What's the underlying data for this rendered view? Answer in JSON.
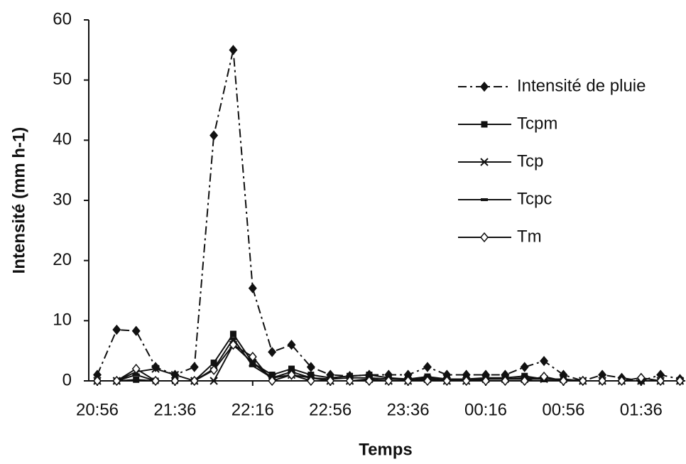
{
  "chart_data": {
    "type": "line",
    "x_label": "Temps",
    "y_label": "Intensité (mm h-1)",
    "categories": [
      "20:56",
      null,
      null,
      null,
      "21:36",
      null,
      null,
      null,
      "22:16",
      null,
      null,
      null,
      "22:56",
      null,
      null,
      null,
      "23:36",
      null,
      null,
      null,
      "00:16",
      null,
      null,
      null,
      "00:56",
      null,
      null,
      null,
      "01:36",
      null,
      null
    ],
    "ylim": [
      0,
      60
    ],
    "yticks": [
      0,
      10,
      20,
      30,
      40,
      50,
      60
    ],
    "series": [
      {
        "name": "Intensité de pluie",
        "color": "#111111",
        "dash": "12,5,3,5",
        "marker": "filled-diamond",
        "values": [
          1,
          8.5,
          8.3,
          2.3,
          1,
          2.3,
          40.8,
          55,
          15.4,
          4.8,
          6,
          2.3,
          1,
          0.8,
          1,
          1,
          1,
          2.3,
          1,
          1,
          1,
          1,
          2.3,
          3.3,
          1,
          0,
          1,
          0.5,
          0,
          1,
          0.3
        ]
      },
      {
        "name": "Tcpm",
        "color": "#111111",
        "dash": "none",
        "marker": "filled-square",
        "values": [
          0,
          0,
          0.2,
          0,
          0,
          0,
          3,
          7.8,
          3,
          1,
          2,
          1,
          0.5,
          0.8,
          1,
          0.5,
          0.3,
          0.7,
          0.3,
          0.3,
          0.5,
          0.5,
          0.8,
          0.3,
          0.2,
          0,
          0,
          0,
          0,
          0,
          0
        ]
      },
      {
        "name": "Tcp",
        "color": "#111111",
        "dash": "none",
        "marker": "cross",
        "values": [
          0,
          0,
          1.5,
          2,
          1,
          0,
          0,
          6,
          3,
          0.5,
          1,
          0.5,
          0,
          0,
          0.3,
          0,
          0,
          0.3,
          0,
          0,
          0.3,
          0.3,
          0.3,
          0.3,
          0.3,
          0,
          0,
          0,
          0,
          0,
          0
        ]
      },
      {
        "name": "Tcpc",
        "color": "#111111",
        "dash": "none",
        "marker": "dash",
        "values": [
          0,
          0,
          1,
          0,
          0,
          0,
          2,
          7,
          2.5,
          0.5,
          1.5,
          0.5,
          0.3,
          0.5,
          0.5,
          0.3,
          0.2,
          0.5,
          0.2,
          0.2,
          0.3,
          0.3,
          0.5,
          0.3,
          0.2,
          0,
          0,
          0,
          0,
          0,
          0
        ]
      },
      {
        "name": "Tm",
        "color": "#111111",
        "dash": "none",
        "marker": "open-diamond",
        "values": [
          0,
          0,
          2,
          0,
          0,
          0,
          1.8,
          6,
          4,
          0,
          1,
          0,
          0,
          0,
          0,
          0,
          0,
          0,
          0,
          0,
          0,
          0,
          0,
          0.7,
          0,
          0,
          0,
          0,
          0.5,
          0,
          0
        ]
      }
    ]
  }
}
